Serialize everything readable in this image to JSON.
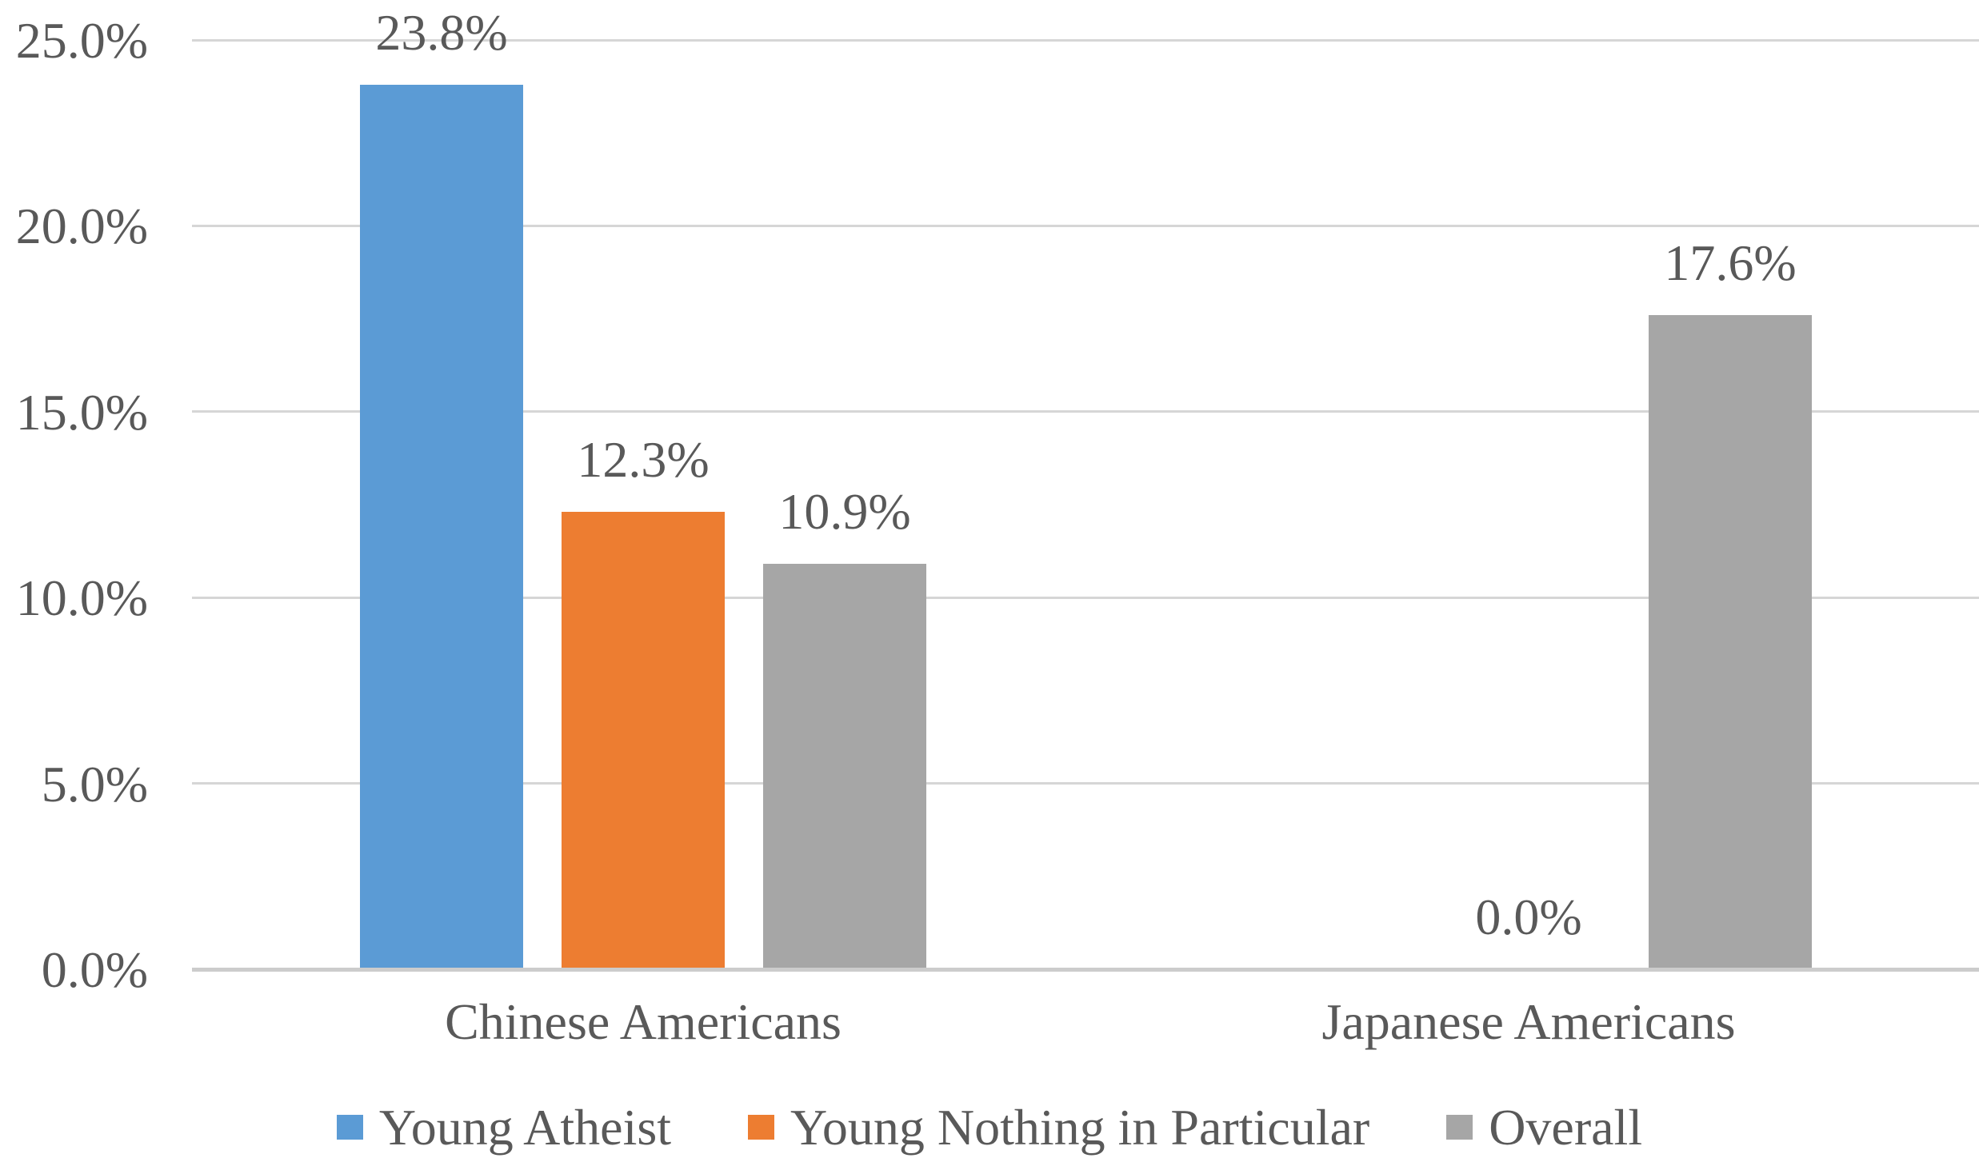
{
  "chart_data": {
    "type": "bar",
    "categories": [
      "Chinese Americans",
      "Japanese Americans"
    ],
    "series": [
      {
        "name": "Young Atheist",
        "color": "#5B9BD5",
        "values": [
          23.8,
          null
        ],
        "data_labels": [
          "23.8%",
          null
        ]
      },
      {
        "name": "Young Nothing in Particular",
        "color": "#ED7D31",
        "values": [
          12.3,
          0
        ],
        "data_labels": [
          "12.3%",
          "0.0%"
        ]
      },
      {
        "name": "Overall",
        "color": "#A6A6A6",
        "values": [
          10.9,
          17.6
        ],
        "data_labels": [
          "10.9%",
          "17.6%"
        ]
      }
    ],
    "y_axis": {
      "min": 0,
      "max": 25,
      "step": 5,
      "tick_labels": [
        "25.0%",
        "20.0%",
        "15.0%",
        "10.0%",
        "5.0%",
        "0.0%"
      ]
    },
    "grid": true,
    "legend_position": "bottom",
    "styles": {
      "text_color": "#595959",
      "gridline_color": "#D6D6D6",
      "axis_line_color": "#CCCCCC",
      "background": "#FFFFFF"
    }
  }
}
